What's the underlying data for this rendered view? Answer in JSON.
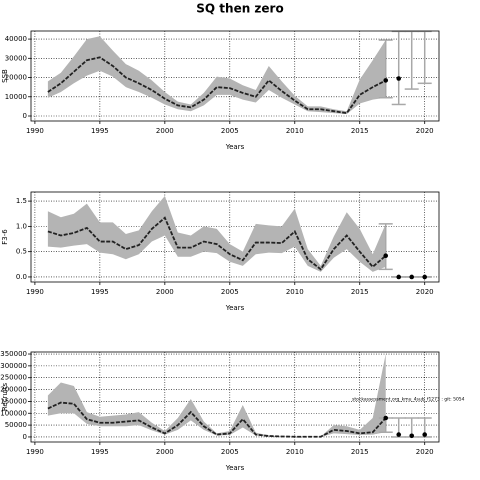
{
  "chart_data": [
    {
      "type": "line",
      "title": "SQ then zero",
      "xlabel": "Years",
      "ylabel": "SSB",
      "x": [
        1991,
        1992,
        1993,
        1994,
        1995,
        1996,
        1997,
        1998,
        1999,
        2000,
        2001,
        2002,
        2003,
        2004,
        2005,
        2006,
        2007,
        2008,
        2009,
        2010,
        2011,
        2012,
        2013,
        2014,
        2015,
        2016,
        2017
      ],
      "values": [
        12500,
        17000,
        23000,
        29000,
        30500,
        26000,
        20000,
        17000,
        13500,
        9000,
        5500,
        4500,
        8500,
        15000,
        14500,
        12000,
        10000,
        18500,
        13000,
        8000,
        3500,
        3500,
        2500,
        1500,
        11000,
        15000,
        18500
      ],
      "lower": [
        9500,
        12500,
        17000,
        21000,
        23500,
        20500,
        15000,
        12500,
        9500,
        6000,
        3500,
        2500,
        5500,
        11000,
        11000,
        8500,
        7000,
        13500,
        9500,
        6000,
        2500,
        2000,
        1500,
        1000,
        6500,
        8500,
        9500
      ],
      "upper": [
        18000,
        22500,
        31000,
        40000,
        41500,
        34000,
        27000,
        23500,
        18500,
        12500,
        7500,
        6000,
        12000,
        20500,
        19500,
        16000,
        13500,
        26000,
        18000,
        10500,
        5000,
        5000,
        3500,
        2500,
        19000,
        29000,
        39500
      ],
      "projection": {
        "x": [
          2017,
          2018,
          2019,
          2020
        ],
        "values": [
          18500,
          19500,
          null,
          null
        ],
        "lower": [
          9500,
          6000,
          14000,
          17000
        ],
        "upper": [
          39500,
          44000,
          44000,
          44000
        ]
      },
      "color": "#222222",
      "band_color": "#b4b4b4",
      "projection_color": "#a8a8a8",
      "xlim": [
        1989.7,
        2021.1
      ],
      "xticks": [
        1990,
        1995,
        2000,
        2005,
        2010,
        2015,
        2020
      ],
      "ylim": [
        -2600,
        44200
      ],
      "yticks": [
        0,
        10000,
        20000,
        30000,
        40000
      ],
      "grid": true
    },
    {
      "type": "line",
      "xlabel": "Years",
      "ylabel": "F3-6",
      "x": [
        1991,
        1992,
        1993,
        1994,
        1995,
        1996,
        1997,
        1998,
        1999,
        2000,
        2001,
        2002,
        2003,
        2004,
        2005,
        2006,
        2007,
        2008,
        2009,
        2010,
        2011,
        2012,
        2013,
        2014,
        2015,
        2016,
        2017
      ],
      "values": [
        0.9,
        0.82,
        0.87,
        0.97,
        0.7,
        0.7,
        0.55,
        0.63,
        0.95,
        1.17,
        0.58,
        0.58,
        0.7,
        0.65,
        0.45,
        0.33,
        0.68,
        0.68,
        0.67,
        0.9,
        0.35,
        0.15,
        0.55,
        0.82,
        0.5,
        0.2,
        0.42
      ],
      "lower": [
        0.6,
        0.58,
        0.62,
        0.65,
        0.48,
        0.45,
        0.35,
        0.45,
        0.7,
        0.82,
        0.4,
        0.4,
        0.5,
        0.47,
        0.3,
        0.22,
        0.45,
        0.48,
        0.47,
        0.6,
        0.22,
        0.1,
        0.38,
        0.55,
        0.3,
        0.1,
        0.2
      ],
      "upper": [
        1.3,
        1.18,
        1.25,
        1.45,
        1.08,
        1.08,
        0.85,
        0.92,
        1.3,
        1.6,
        0.88,
        0.82,
        1.0,
        0.95,
        0.65,
        0.5,
        1.05,
        1.02,
        1.0,
        1.35,
        0.55,
        0.22,
        0.8,
        1.28,
        0.95,
        0.45,
        1.05
      ],
      "projection": {
        "x": [
          2017,
          2018,
          2019,
          2020
        ],
        "values": [
          0.42,
          0,
          0,
          0
        ],
        "lower": [
          0.15,
          0,
          0,
          0
        ],
        "upper": [
          1.05,
          0,
          0,
          0
        ]
      },
      "color": "#222222",
      "band_color": "#b4b4b4",
      "projection_color": "#a8a8a8",
      "xlim": [
        1989.7,
        2021.1
      ],
      "xticks": [
        1990,
        1995,
        2000,
        2005,
        2010,
        2015,
        2020
      ],
      "ylim": [
        -0.1,
        1.68
      ],
      "yticks": [
        {
          "value": 0,
          "label": "0.0"
        },
        {
          "value": 0.5,
          "label": "0.5"
        },
        {
          "value": 1,
          "label": "1.0"
        },
        {
          "value": 1.5,
          "label": "1.5"
        }
      ],
      "grid": true
    },
    {
      "type": "line",
      "xlabel": "Years",
      "ylabel": "Recruits",
      "annotation": "stockassessment.org_kmu_4sub_f1273 : git: 5054",
      "x": [
        1991,
        1992,
        1993,
        1994,
        1995,
        1996,
        1997,
        1998,
        1999,
        2000,
        2001,
        2002,
        2003,
        2004,
        2005,
        2006,
        2007,
        2008,
        2009,
        2010,
        2011,
        2012,
        2013,
        2014,
        2015,
        2016,
        2017
      ],
      "values": [
        120000,
        145000,
        140000,
        75000,
        60000,
        60000,
        65000,
        70000,
        40000,
        15000,
        50000,
        105000,
        45000,
        10000,
        15000,
        75000,
        10000,
        4000,
        2000,
        1000,
        1000,
        1000,
        30000,
        25000,
        15000,
        20000,
        80000
      ],
      "lower": [
        90000,
        100000,
        100000,
        55000,
        45000,
        45000,
        45000,
        50000,
        28000,
        10000,
        30000,
        70000,
        30000,
        6000,
        8000,
        40000,
        6000,
        2000,
        1000,
        500,
        500,
        500,
        15000,
        12000,
        8000,
        10000,
        20000
      ],
      "upper": [
        175000,
        230000,
        215000,
        105000,
        85000,
        90000,
        95000,
        105000,
        60000,
        25000,
        80000,
        160000,
        65000,
        15000,
        25000,
        135000,
        18000,
        6000,
        3000,
        2000,
        2000,
        2000,
        50000,
        45000,
        30000,
        80000,
        350000
      ],
      "projection": {
        "x": [
          2017,
          2018,
          2019,
          2020
        ],
        "values": [
          80000,
          10000,
          5000,
          10000
        ],
        "lower": [
          20000,
          0,
          0,
          0
        ],
        "upper": [
          80000,
          80000,
          80000,
          80000
        ]
      },
      "color": "#222222",
      "band_color": "#b4b4b4",
      "projection_color": "#a8a8a8",
      "xlim": [
        1989.7,
        2021.1
      ],
      "xticks": [
        1990,
        1995,
        2000,
        2005,
        2010,
        2015,
        2020
      ],
      "ylim": [
        -21300,
        358500
      ],
      "yticks": [
        0,
        50000,
        100000,
        150000,
        200000,
        250000,
        300000,
        350000
      ],
      "grid": true
    }
  ]
}
